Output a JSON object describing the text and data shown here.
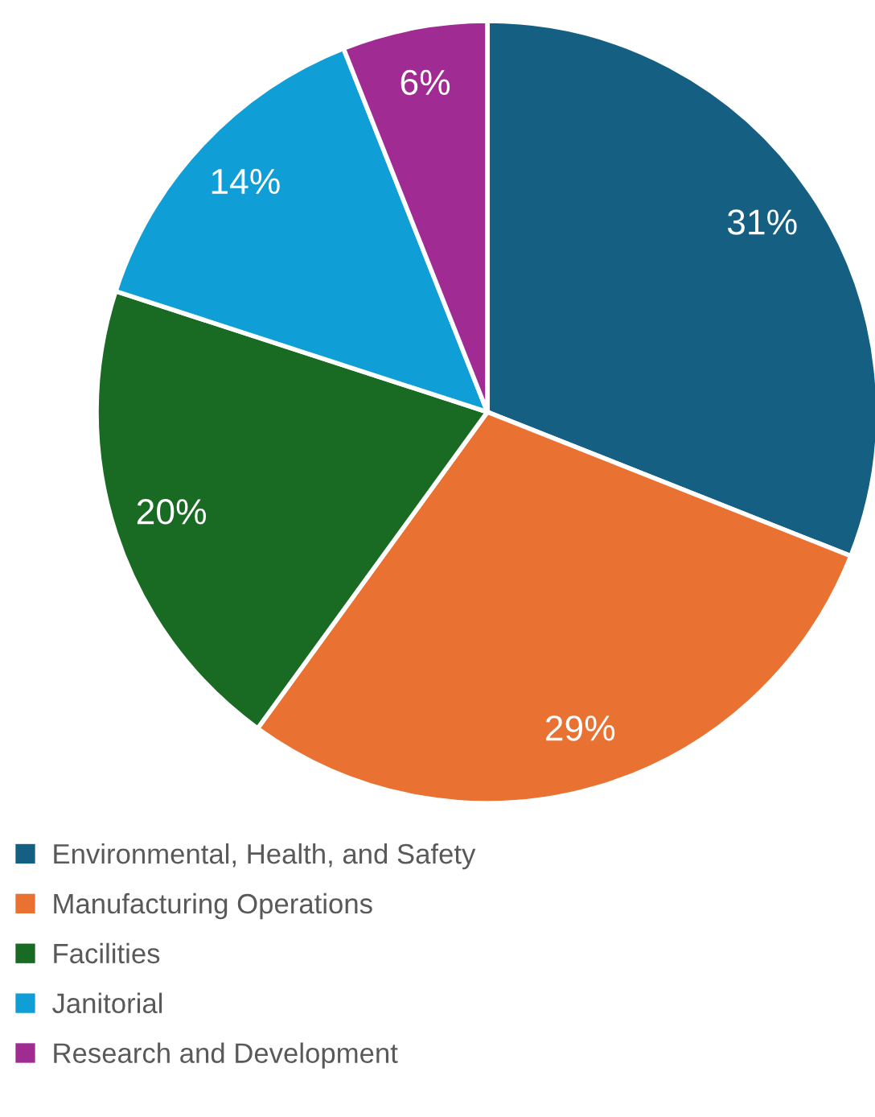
{
  "chart_data": {
    "type": "pie",
    "categories": [
      "Environmental, Health, and Safety",
      "Manufacturing Operations",
      "Facilities",
      "Janitorial",
      "Research and Development"
    ],
    "values": [
      31,
      29,
      20,
      14,
      6
    ],
    "colors": [
      "#156082",
      "#e97132",
      "#196b24",
      "#0f9ed5",
      "#a02b93"
    ],
    "value_labels": [
      "31%",
      "29%",
      "20%",
      "14%",
      "6%"
    ],
    "legend": "bottom"
  }
}
